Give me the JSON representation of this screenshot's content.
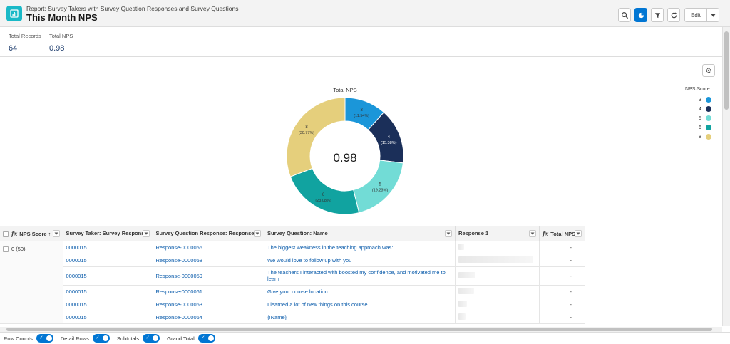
{
  "header": {
    "report_type": "Report: Survey Takers with Survey Question Responses and Survey Questions",
    "title": "This Month NPS",
    "edit_label": "Edit",
    "icons": [
      "search-icon",
      "chart-icon",
      "filter-icon",
      "refresh-icon",
      "chevron-down-icon"
    ]
  },
  "summary": {
    "items": [
      {
        "label": "Total Records",
        "value": "64"
      },
      {
        "label": "Total NPS",
        "value": "0.98"
      }
    ]
  },
  "chart_data": {
    "type": "pie",
    "title": "Total NPS",
    "center_value": "0.98",
    "legend_title": "NPS Score",
    "legend_position": "right",
    "slices": [
      {
        "label": "3",
        "value": 11.54,
        "pct_label": "(11.54%)",
        "color": "#1b96d9"
      },
      {
        "label": "4",
        "value": 15.38,
        "pct_label": "(15.38%)",
        "color": "#1b2f59"
      },
      {
        "label": "5",
        "value": 19.23,
        "pct_label": "(19.23%)",
        "color": "#72dcd6"
      },
      {
        "label": "6",
        "value": 23.08,
        "pct_label": "(23.08%)",
        "color": "#11a3a0"
      },
      {
        "label": "8",
        "value": 30.77,
        "pct_label": "(30.77%)",
        "color": "#e5cf7c"
      }
    ]
  },
  "table": {
    "columns": [
      {
        "label": "NPS Score",
        "sort": "↑",
        "fx": true
      },
      {
        "label": "Survey Taker: Survey Response"
      },
      {
        "label": "Survey Question Response: Response ID"
      },
      {
        "label": "Survey Question: Name"
      },
      {
        "label": "Response 1"
      },
      {
        "label": "Total NPS",
        "fx": true
      }
    ],
    "group_label": "0 (50)",
    "rows": [
      {
        "taker": "0000015",
        "response_id": "Response-0000055",
        "question": "The biggest weakness in the teaching approach was:",
        "total": "-"
      },
      {
        "taker": "0000015",
        "response_id": "Response-0000058",
        "question": "We would love to follow up with you",
        "total": "-"
      },
      {
        "taker": "0000015",
        "response_id": "Response-0000059",
        "question": "The teachers I interacted with boosted my confidence, and motivated me to learn",
        "total": "-"
      },
      {
        "taker": "0000015",
        "response_id": "Response-0000061",
        "question": "Give your course location",
        "total": "-"
      },
      {
        "taker": "0000015",
        "response_id": "Response-0000063",
        "question": "I learned a lot of new things on this course",
        "total": "-"
      },
      {
        "taker": "0000015",
        "response_id": "Response-0000064",
        "question": "{!Name}",
        "total": "-"
      }
    ]
  },
  "footer": {
    "toggles": [
      {
        "label": "Row Counts",
        "on": true
      },
      {
        "label": "Detail Rows",
        "on": true
      },
      {
        "label": "Subtotals",
        "on": true
      },
      {
        "label": "Grand Total",
        "on": true
      }
    ]
  },
  "colors": {
    "accent": "#0176d3",
    "app_icon": "#1ab9c7",
    "link": "#0b5cab"
  }
}
